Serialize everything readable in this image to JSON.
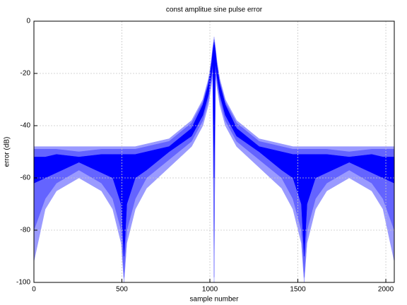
{
  "chart_data": {
    "type": "band",
    "title": "const amplitue sine pulse error",
    "xlabel": "sample number",
    "ylabel": "error (dB)",
    "x": [
      0,
      64,
      128,
      256,
      384,
      448,
      496,
      512,
      528,
      576,
      640,
      768,
      896,
      960,
      992,
      1008,
      1016,
      1024,
      1032,
      1040,
      1056,
      1088,
      1152,
      1280,
      1408,
      1472,
      1520,
      1536,
      1552,
      1600,
      1664,
      1792,
      1920,
      1984,
      2048
    ],
    "series": [
      {
        "color": "#9a9aff",
        "upper": [
          -48,
          -48,
          -48,
          -48,
          -48,
          -48,
          -48,
          -48,
          -48,
          -48,
          -47,
          -45,
          -38,
          -30,
          -22,
          -15,
          -10,
          -6,
          -10,
          -15,
          -22,
          -30,
          -38,
          -45,
          -47,
          -48,
          -48,
          -48,
          -48,
          -48,
          -48,
          -48,
          -48,
          -48,
          -48
        ],
        "lower": [
          -92,
          -72,
          -65,
          -60,
          -65,
          -72,
          -85,
          -100,
          -85,
          -72,
          -64,
          -56,
          -48,
          -40,
          -32,
          -25,
          -20,
          -100,
          -20,
          -25,
          -32,
          -40,
          -48,
          -56,
          -64,
          -72,
          -85,
          -100,
          -85,
          -72,
          -65,
          -60,
          -65,
          -72,
          -92
        ]
      },
      {
        "color": "#6464ff",
        "upper": [
          -49,
          -49,
          -49,
          -50,
          -49,
          -49,
          -49,
          -49,
          -49,
          -49,
          -48,
          -46,
          -39,
          -31,
          -23,
          -16,
          -11,
          -7,
          -11,
          -16,
          -23,
          -31,
          -39,
          -46,
          -48,
          -49,
          -49,
          -49,
          -49,
          -49,
          -49,
          -50,
          -49,
          -49,
          -49
        ],
        "lower": [
          -80,
          -68,
          -62,
          -57,
          -62,
          -68,
          -80,
          -98,
          -80,
          -68,
          -60,
          -53,
          -46,
          -38,
          -30,
          -23,
          -18,
          -98,
          -18,
          -23,
          -30,
          -38,
          -46,
          -53,
          -60,
          -68,
          -80,
          -98,
          -80,
          -68,
          -62,
          -57,
          -62,
          -68,
          -80
        ]
      },
      {
        "color": "#0000ff",
        "upper": [
          -52,
          -52,
          -51,
          -52,
          -51,
          -51,
          -51,
          -51,
          -51,
          -51,
          -50,
          -48,
          -41,
          -32,
          -24,
          -17,
          -12,
          -8,
          -12,
          -17,
          -24,
          -32,
          -41,
          -48,
          -50,
          -51,
          -51,
          -51,
          -51,
          -51,
          -51,
          -52,
          -51,
          -52,
          -52
        ],
        "lower": [
          -62,
          -60,
          -58,
          -54,
          -58,
          -60,
          -70,
          -90,
          -70,
          -60,
          -57,
          -50,
          -44,
          -36,
          -28,
          -21,
          -16,
          -60,
          -16,
          -21,
          -28,
          -36,
          -44,
          -50,
          -57,
          -60,
          -70,
          -90,
          -70,
          -60,
          -58,
          -54,
          -58,
          -60,
          -62
        ]
      }
    ],
    "xlim": [
      0,
      2048
    ],
    "ylim": [
      -100,
      0
    ],
    "xticks": [
      0,
      500,
      1000,
      1500,
      2000
    ],
    "yticks": [
      -100,
      -80,
      -60,
      -40,
      -20,
      0
    ],
    "grid": true
  }
}
